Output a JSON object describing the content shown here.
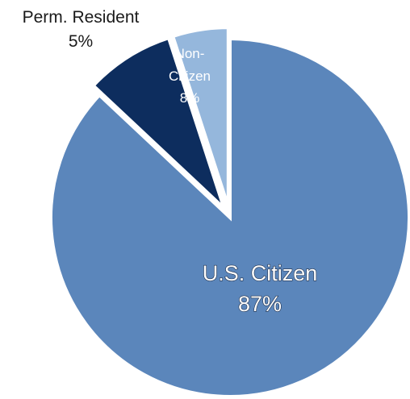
{
  "chart_data": {
    "type": "pie",
    "title": "",
    "slices": [
      {
        "label": "U.S. Citizen",
        "value": 87,
        "value_label": "87%",
        "color": "#5b86bb",
        "exploded": false
      },
      {
        "label": "Non-Citizen",
        "label_lines": [
          "Non-",
          "Citizen"
        ],
        "value": 8,
        "value_label": "8%",
        "color": "#0d2d5e",
        "exploded": true
      },
      {
        "label": "Perm. Resident",
        "value": 5,
        "value_label": "5%",
        "color": "#95b7dc",
        "exploded": true
      }
    ],
    "start_angle": "12 o'clock",
    "direction": "clockwise",
    "legend": "none"
  }
}
